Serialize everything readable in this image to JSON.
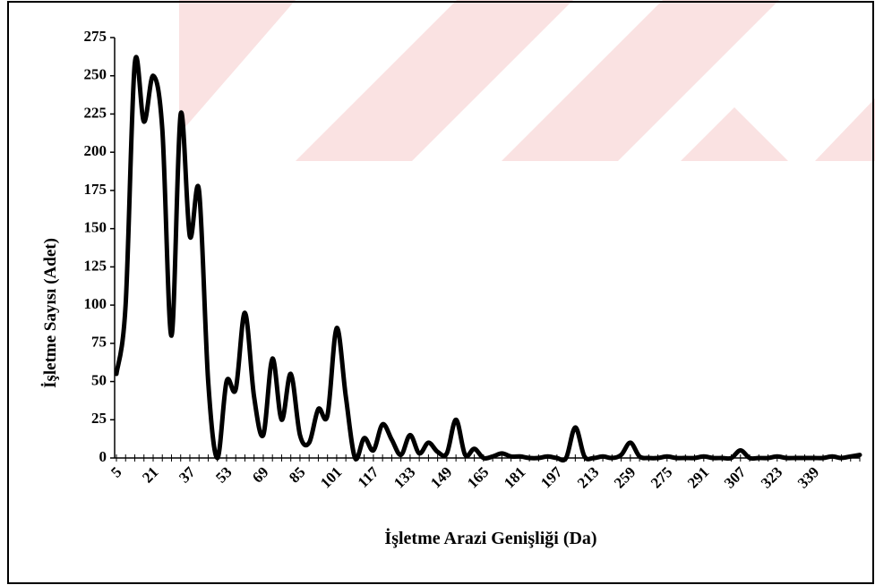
{
  "chart_data": {
    "type": "line",
    "x_label": "İşletme Arazi Genişliği (Da)",
    "y_label": "İşletme Sayısı (Adet)",
    "categories": [
      "5",
      null,
      null,
      null,
      "21",
      null,
      null,
      null,
      "37",
      null,
      null,
      null,
      "53",
      null,
      null,
      null,
      "69",
      null,
      null,
      null,
      "85",
      null,
      null,
      null,
      "101",
      null,
      null,
      null,
      "117",
      null,
      null,
      null,
      "133",
      null,
      null,
      null,
      "149",
      null,
      null,
      null,
      "165",
      null,
      null,
      null,
      "181",
      null,
      null,
      null,
      "197",
      null,
      null,
      null,
      "213",
      null,
      null,
      null,
      "259",
      null,
      null,
      null,
      "275",
      null,
      null,
      null,
      "291",
      null,
      null,
      null,
      "307",
      null,
      null,
      null,
      "323",
      null,
      null,
      null,
      "339",
      null,
      null,
      null,
      null,
      null
    ],
    "series": [
      {
        "color": "#000000",
        "values": [
          55,
          100,
          258,
          220,
          250,
          215,
          80,
          225,
          145,
          175,
          50,
          0,
          50,
          45,
          95,
          40,
          15,
          65,
          25,
          55,
          15,
          10,
          32,
          28,
          85,
          40,
          0,
          13,
          5,
          22,
          12,
          2,
          15,
          3,
          10,
          4,
          3,
          25,
          2,
          6,
          0,
          1,
          3,
          1,
          1,
          0,
          0,
          1,
          0,
          0,
          20,
          1,
          0,
          1,
          0,
          2,
          10,
          1,
          0,
          0,
          1,
          0,
          0,
          0,
          1,
          0,
          0,
          0,
          5,
          0,
          0,
          0,
          1,
          0,
          0,
          0,
          0,
          0,
          1,
          0,
          1,
          2
        ]
      }
    ],
    "ylim": [
      0,
      275
    ],
    "yticks": [
      0,
      25,
      50,
      75,
      100,
      125,
      150,
      175,
      200,
      225,
      250,
      275
    ]
  }
}
